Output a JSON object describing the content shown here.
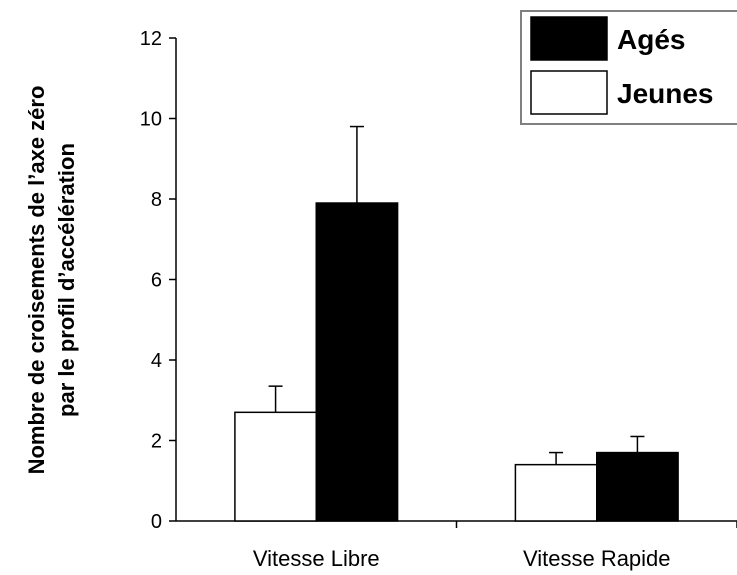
{
  "chart_data": {
    "type": "bar",
    "categories": [
      "Vitesse Libre",
      "Vitesse Rapide"
    ],
    "series": [
      {
        "name": "Jeunes",
        "values": [
          2.7,
          1.4
        ],
        "errors": [
          0.65,
          0.3
        ],
        "color": "#ffffff"
      },
      {
        "name": "Agés",
        "values": [
          7.9,
          1.7
        ],
        "errors": [
          1.9,
          0.4
        ],
        "color": "#000000"
      }
    ],
    "ylabel_lines": [
      "Nombre de croisements de l’axe zéro",
      "par le profil d’accélération"
    ],
    "xlabel": "",
    "title": "",
    "ylim": [
      0,
      12
    ],
    "yticks": [
      "0",
      "2",
      "4",
      "6",
      "8",
      "10",
      "12"
    ],
    "legend_order": [
      "Agés",
      "Jeunes"
    ],
    "legend_position": "top-right",
    "grid": false
  }
}
